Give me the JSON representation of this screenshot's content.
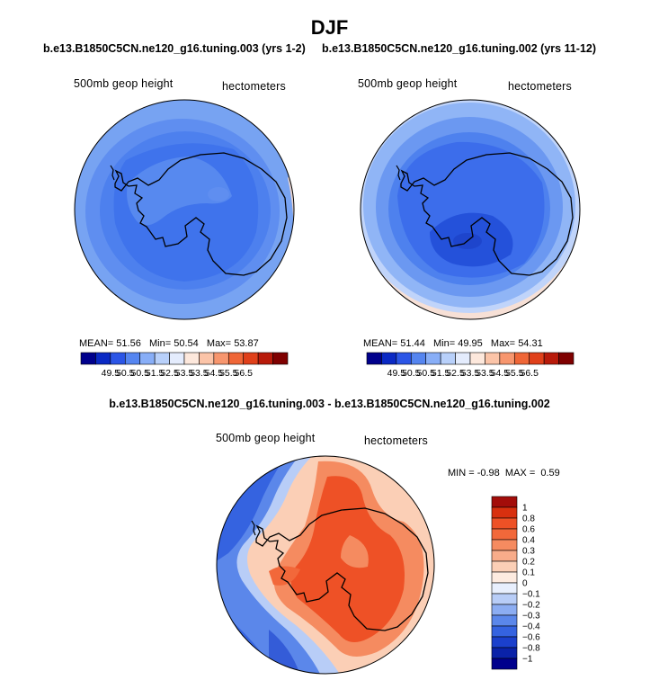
{
  "title": "DJF",
  "runs": {
    "case_a": "b.e13.B1850C5CN.ne120_g16.tuning.003 (yrs 1-2)",
    "case_b": "b.e13.B1850C5CN.ne120_g16.tuning.002 (yrs 11-12)"
  },
  "panels": [
    {
      "field_label": "500mb geop height",
      "units_label": "hectometers",
      "stats": {
        "mean_label": "MEAN=",
        "mean": "51.56",
        "min_label": "Min=",
        "min": "50.54",
        "max_label": "Max=",
        "max": "53.87"
      }
    },
    {
      "field_label": "500mb geop height",
      "units_label": "hectometers",
      "stats": {
        "mean_label": "MEAN=",
        "mean": "51.44",
        "min_label": "Min=",
        "min": "49.95",
        "max_label": "Max=",
        "max": "54.31"
      }
    }
  ],
  "colorbar": {
    "levels": [
      "49.5",
      "50.5",
      "50.5",
      "51.5",
      "52.5",
      "53.5",
      "53.5",
      "54.5",
      "55.5",
      "56.5"
    ],
    "colors": [
      "#00008c",
      "#0a29c4",
      "#2b55e6",
      "#5585f0",
      "#88aef7",
      "#b8d0fa",
      "#e4ecfd",
      "#fde8dc",
      "#fbc4a8",
      "#f7966e",
      "#ef6637",
      "#e0401a",
      "#b81a0a",
      "#7f0000"
    ]
  },
  "difference": {
    "title": "b.e13.B1850C5CN.ne120_g16.tuning.003 - b.e13.B1850C5CN.ne120_g16.tuning.002",
    "field_label": "500mb geop height",
    "units_label": "hectometers",
    "min_label": "MIN =",
    "min": "-0.98",
    "max_label": "MAX =",
    "max": "0.59",
    "legend_levels": [
      "1",
      "0.8",
      "0.6",
      "0.4",
      "0.3",
      "0.2",
      "0.1",
      "0",
      "−0.1",
      "−0.2",
      "−0.3",
      "−0.4",
      "−0.6",
      "−0.8",
      "−1"
    ],
    "legend_colors": [
      "#a30d0a",
      "#d8300f",
      "#ee5126",
      "#f2683a",
      "#f58b60",
      "#f8ac8a",
      "#fbcfb6",
      "#fdebe0",
      "#e8effd",
      "#b8cdf7",
      "#8cadf2",
      "#5b87ea",
      "#3563e0",
      "#1b40cc",
      "#0a22a8",
      "#00008c"
    ]
  }
}
